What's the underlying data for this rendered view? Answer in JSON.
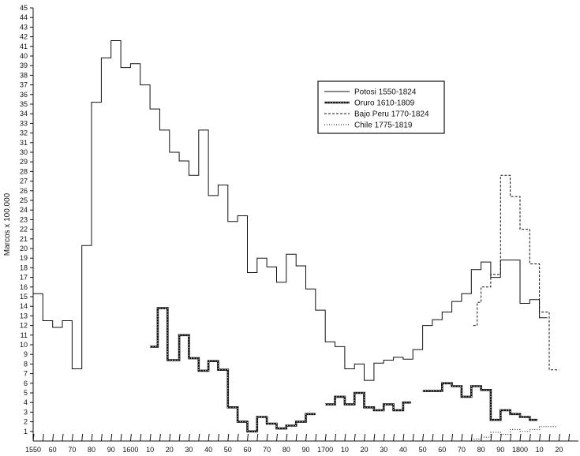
{
  "chart_data": {
    "type": "line",
    "step": true,
    "title": "",
    "xlabel": "",
    "ylabel": "Marcos x 100.000",
    "xlim": [
      1550,
      1830
    ],
    "ylim": [
      0,
      45
    ],
    "x_tick_labels": [
      {
        "x": 1550,
        "label": "1550"
      },
      {
        "x": 1560,
        "label": "60"
      },
      {
        "x": 1570,
        "label": "70"
      },
      {
        "x": 1580,
        "label": "80"
      },
      {
        "x": 1590,
        "label": "90"
      },
      {
        "x": 1600,
        "label": "1600"
      },
      {
        "x": 1610,
        "label": "10"
      },
      {
        "x": 1620,
        "label": "20"
      },
      {
        "x": 1630,
        "label": "30"
      },
      {
        "x": 1640,
        "label": "40"
      },
      {
        "x": 1650,
        "label": "50"
      },
      {
        "x": 1660,
        "label": "60"
      },
      {
        "x": 1670,
        "label": "70"
      },
      {
        "x": 1680,
        "label": "80"
      },
      {
        "x": 1690,
        "label": "90"
      },
      {
        "x": 1700,
        "label": "1700"
      },
      {
        "x": 1710,
        "label": "10"
      },
      {
        "x": 1720,
        "label": "20"
      },
      {
        "x": 1730,
        "label": "30"
      },
      {
        "x": 1740,
        "label": "40"
      },
      {
        "x": 1750,
        "label": "50"
      },
      {
        "x": 1760,
        "label": "60"
      },
      {
        "x": 1770,
        "label": "70"
      },
      {
        "x": 1780,
        "label": "80"
      },
      {
        "x": 1790,
        "label": "90"
      },
      {
        "x": 1800,
        "label": "1800"
      },
      {
        "x": 1810,
        "label": "10"
      },
      {
        "x": 1820,
        "label": "20"
      }
    ],
    "y_ticks": [
      1,
      2,
      3,
      4,
      5,
      6,
      7,
      8,
      9,
      10,
      11,
      12,
      13,
      14,
      15,
      16,
      17,
      18,
      19,
      20,
      21,
      22,
      23,
      24,
      25,
      26,
      27,
      28,
      29,
      30,
      31,
      32,
      33,
      34,
      35,
      36,
      37,
      38,
      39,
      40,
      41,
      42,
      43,
      44,
      45
    ],
    "legend_position": "top-right",
    "series": [
      {
        "name": "Potosi 1550-1824",
        "style": "thin-solid",
        "points": [
          [
            1550,
            15.3
          ],
          [
            1555,
            12.5
          ],
          [
            1560,
            11.8
          ],
          [
            1565,
            12.5
          ],
          [
            1570,
            7.5
          ],
          [
            1575,
            20.3
          ],
          [
            1580,
            35.2
          ],
          [
            1585,
            39.8
          ],
          [
            1590,
            41.6
          ],
          [
            1595,
            38.8
          ],
          [
            1600,
            39.2
          ],
          [
            1605,
            37.0
          ],
          [
            1610,
            34.5
          ],
          [
            1615,
            32.3
          ],
          [
            1620,
            30.0
          ],
          [
            1625,
            29.1
          ],
          [
            1630,
            27.6
          ],
          [
            1635,
            32.3
          ],
          [
            1640,
            25.5
          ],
          [
            1645,
            26.6
          ],
          [
            1650,
            22.8
          ],
          [
            1655,
            23.4
          ],
          [
            1660,
            17.5
          ],
          [
            1665,
            19.0
          ],
          [
            1670,
            18.1
          ],
          [
            1675,
            16.5
          ],
          [
            1680,
            19.4
          ],
          [
            1685,
            18.2
          ],
          [
            1690,
            15.8
          ],
          [
            1695,
            13.6
          ],
          [
            1700,
            10.3
          ],
          [
            1705,
            9.8
          ],
          [
            1710,
            7.5
          ],
          [
            1715,
            8.0
          ],
          [
            1720,
            6.3
          ],
          [
            1725,
            8.1
          ],
          [
            1730,
            8.4
          ],
          [
            1735,
            8.7
          ],
          [
            1740,
            8.5
          ],
          [
            1745,
            9.5
          ],
          [
            1750,
            12.0
          ],
          [
            1755,
            12.6
          ],
          [
            1760,
            13.4
          ],
          [
            1765,
            14.5
          ],
          [
            1770,
            15.3
          ],
          [
            1775,
            17.8
          ],
          [
            1780,
            18.6
          ],
          [
            1785,
            17.0
          ],
          [
            1790,
            18.8
          ],
          [
            1795,
            18.8
          ],
          [
            1800,
            14.3
          ],
          [
            1805,
            14.7
          ],
          [
            1810,
            12.8
          ],
          [
            1814,
            12.8
          ]
        ]
      },
      {
        "name": "Oruro 1610-1809",
        "style": "bold-dotted",
        "points": [
          [
            1610,
            9.8
          ],
          [
            1614,
            13.8
          ],
          [
            1619,
            8.4
          ],
          [
            1625,
            11.0
          ],
          [
            1630,
            8.6
          ],
          [
            1635,
            7.3
          ],
          [
            1640,
            8.3
          ],
          [
            1645,
            7.4
          ],
          [
            1650,
            3.5
          ],
          [
            1655,
            2.0
          ],
          [
            1660,
            1.0
          ],
          [
            1665,
            2.5
          ],
          [
            1670,
            1.8
          ],
          [
            1675,
            1.3
          ],
          [
            1680,
            1.6
          ],
          [
            1685,
            2.0
          ],
          [
            1690,
            2.8
          ],
          [
            1695,
            2.8
          ]
        ]
      },
      {
        "name": "Oruro 1610-1809",
        "style": "bold-dotted",
        "points": [
          [
            1700,
            3.8
          ],
          [
            1705,
            4.6
          ],
          [
            1710,
            3.8
          ],
          [
            1715,
            5.0
          ],
          [
            1720,
            3.5
          ],
          [
            1725,
            3.2
          ],
          [
            1730,
            3.8
          ],
          [
            1735,
            3.2
          ],
          [
            1740,
            4.0
          ],
          [
            1744,
            4.0
          ]
        ]
      },
      {
        "name": "Oruro 1610-1809",
        "style": "bold-dotted",
        "points": [
          [
            1750,
            5.2
          ],
          [
            1755,
            5.2
          ],
          [
            1760,
            6.0
          ],
          [
            1765,
            5.7
          ],
          [
            1770,
            4.6
          ],
          [
            1775,
            5.7
          ],
          [
            1780,
            5.3
          ],
          [
            1785,
            2.2
          ],
          [
            1790,
            3.2
          ],
          [
            1795,
            2.8
          ],
          [
            1800,
            2.5
          ],
          [
            1805,
            2.2
          ],
          [
            1809,
            2.2
          ]
        ]
      },
      {
        "name": "Bajo Peru 1770-1824",
        "style": "dashed",
        "points": [
          [
            1776,
            12.0
          ],
          [
            1778,
            14.4
          ],
          [
            1780,
            16.0
          ],
          [
            1785,
            17.3
          ],
          [
            1790,
            27.6
          ],
          [
            1795,
            25.4
          ],
          [
            1800,
            22.0
          ],
          [
            1805,
            18.4
          ],
          [
            1810,
            13.4
          ],
          [
            1815,
            7.4
          ],
          [
            1820,
            7.4
          ]
        ]
      },
      {
        "name": "Chile 1775-1819",
        "style": "dotted",
        "points": [
          [
            1775,
            0.2
          ],
          [
            1780,
            0.4
          ],
          [
            1785,
            0.9
          ],
          [
            1790,
            0.7
          ],
          [
            1795,
            1.2
          ],
          [
            1800,
            1.0
          ],
          [
            1805,
            1.2
          ],
          [
            1810,
            1.5
          ],
          [
            1815,
            1.5
          ],
          [
            1819,
            1.5
          ]
        ]
      }
    ]
  }
}
